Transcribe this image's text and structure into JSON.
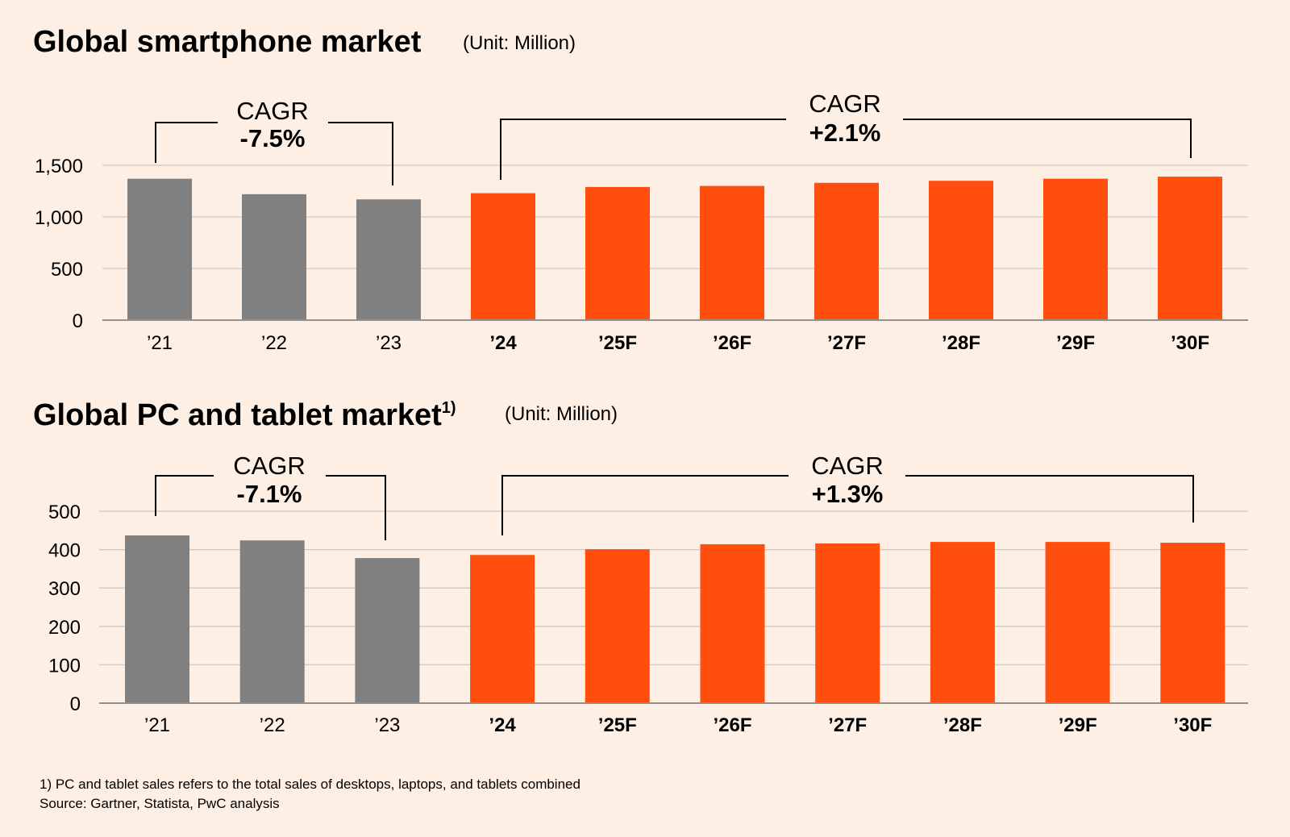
{
  "chart_data": [
    {
      "type": "bar",
      "title": "Global smartphone market",
      "title_superscript": "",
      "unit": "(Unit: Million)",
      "categories": [
        "’21",
        "’22",
        "’23",
        "’24",
        "’25F",
        "’26F",
        "’27F",
        "’28F",
        "’29F",
        "’30F"
      ],
      "bold_categories": [
        false,
        false,
        false,
        true,
        true,
        true,
        true,
        true,
        true,
        true
      ],
      "values": [
        1370,
        1220,
        1170,
        1230,
        1290,
        1300,
        1330,
        1350,
        1370,
        1390
      ],
      "bar_colors": [
        "#808080",
        "#808080",
        "#808080",
        "#FF4E0D",
        "#FF4E0D",
        "#FF4E0D",
        "#FF4E0D",
        "#FF4E0D",
        "#FF4E0D",
        "#FF4E0D"
      ],
      "ylim": [
        0,
        1500
      ],
      "yticks": [
        0,
        500,
        1000,
        1500
      ],
      "ytick_labels": [
        "0",
        "500",
        "1,000",
        "1,500"
      ],
      "grid": true,
      "xlabel": "",
      "ylabel": "",
      "annotations": [
        {
          "label": "CAGR",
          "value": "-7.5%",
          "from_category": "’21",
          "to_category": "’23"
        },
        {
          "label": "CAGR",
          "value": "+2.1%",
          "from_category": "’24",
          "to_category": "’30F"
        }
      ]
    },
    {
      "type": "bar",
      "title": "Global PC and tablet market",
      "title_superscript": "1)",
      "unit": "(Unit: Million)",
      "categories": [
        "’21",
        "’22",
        "’23",
        "’24",
        "’25F",
        "’26F",
        "’27F",
        "’28F",
        "’29F",
        "’30F"
      ],
      "bold_categories": [
        false,
        false,
        false,
        true,
        true,
        true,
        true,
        true,
        true,
        true
      ],
      "values": [
        437,
        424,
        378,
        386,
        401,
        414,
        416,
        420,
        420,
        418
      ],
      "bar_colors": [
        "#808080",
        "#808080",
        "#808080",
        "#FF4E0D",
        "#FF4E0D",
        "#FF4E0D",
        "#FF4E0D",
        "#FF4E0D",
        "#FF4E0D",
        "#FF4E0D"
      ],
      "ylim": [
        0,
        500
      ],
      "yticks": [
        0,
        100,
        200,
        300,
        400,
        500
      ],
      "ytick_labels": [
        "0",
        "100",
        "200",
        "300",
        "400",
        "500"
      ],
      "grid": true,
      "xlabel": "",
      "ylabel": "",
      "annotations": [
        {
          "label": "CAGR",
          "value": "-7.1%",
          "from_category": "’21",
          "to_category": "’23"
        },
        {
          "label": "CAGR",
          "value": "+1.3%",
          "from_category": "’24",
          "to_category": "’30F"
        }
      ]
    }
  ],
  "footnotes": {
    "note": "1) PC and tablet sales refers to the total sales of desktops, laptops, and tablets combined",
    "source": "Source: Gartner, Statista, PwC analysis"
  },
  "colors": {
    "background": "#FDEFE4",
    "historical": "#808080",
    "forecast": "#FF4E0D"
  }
}
